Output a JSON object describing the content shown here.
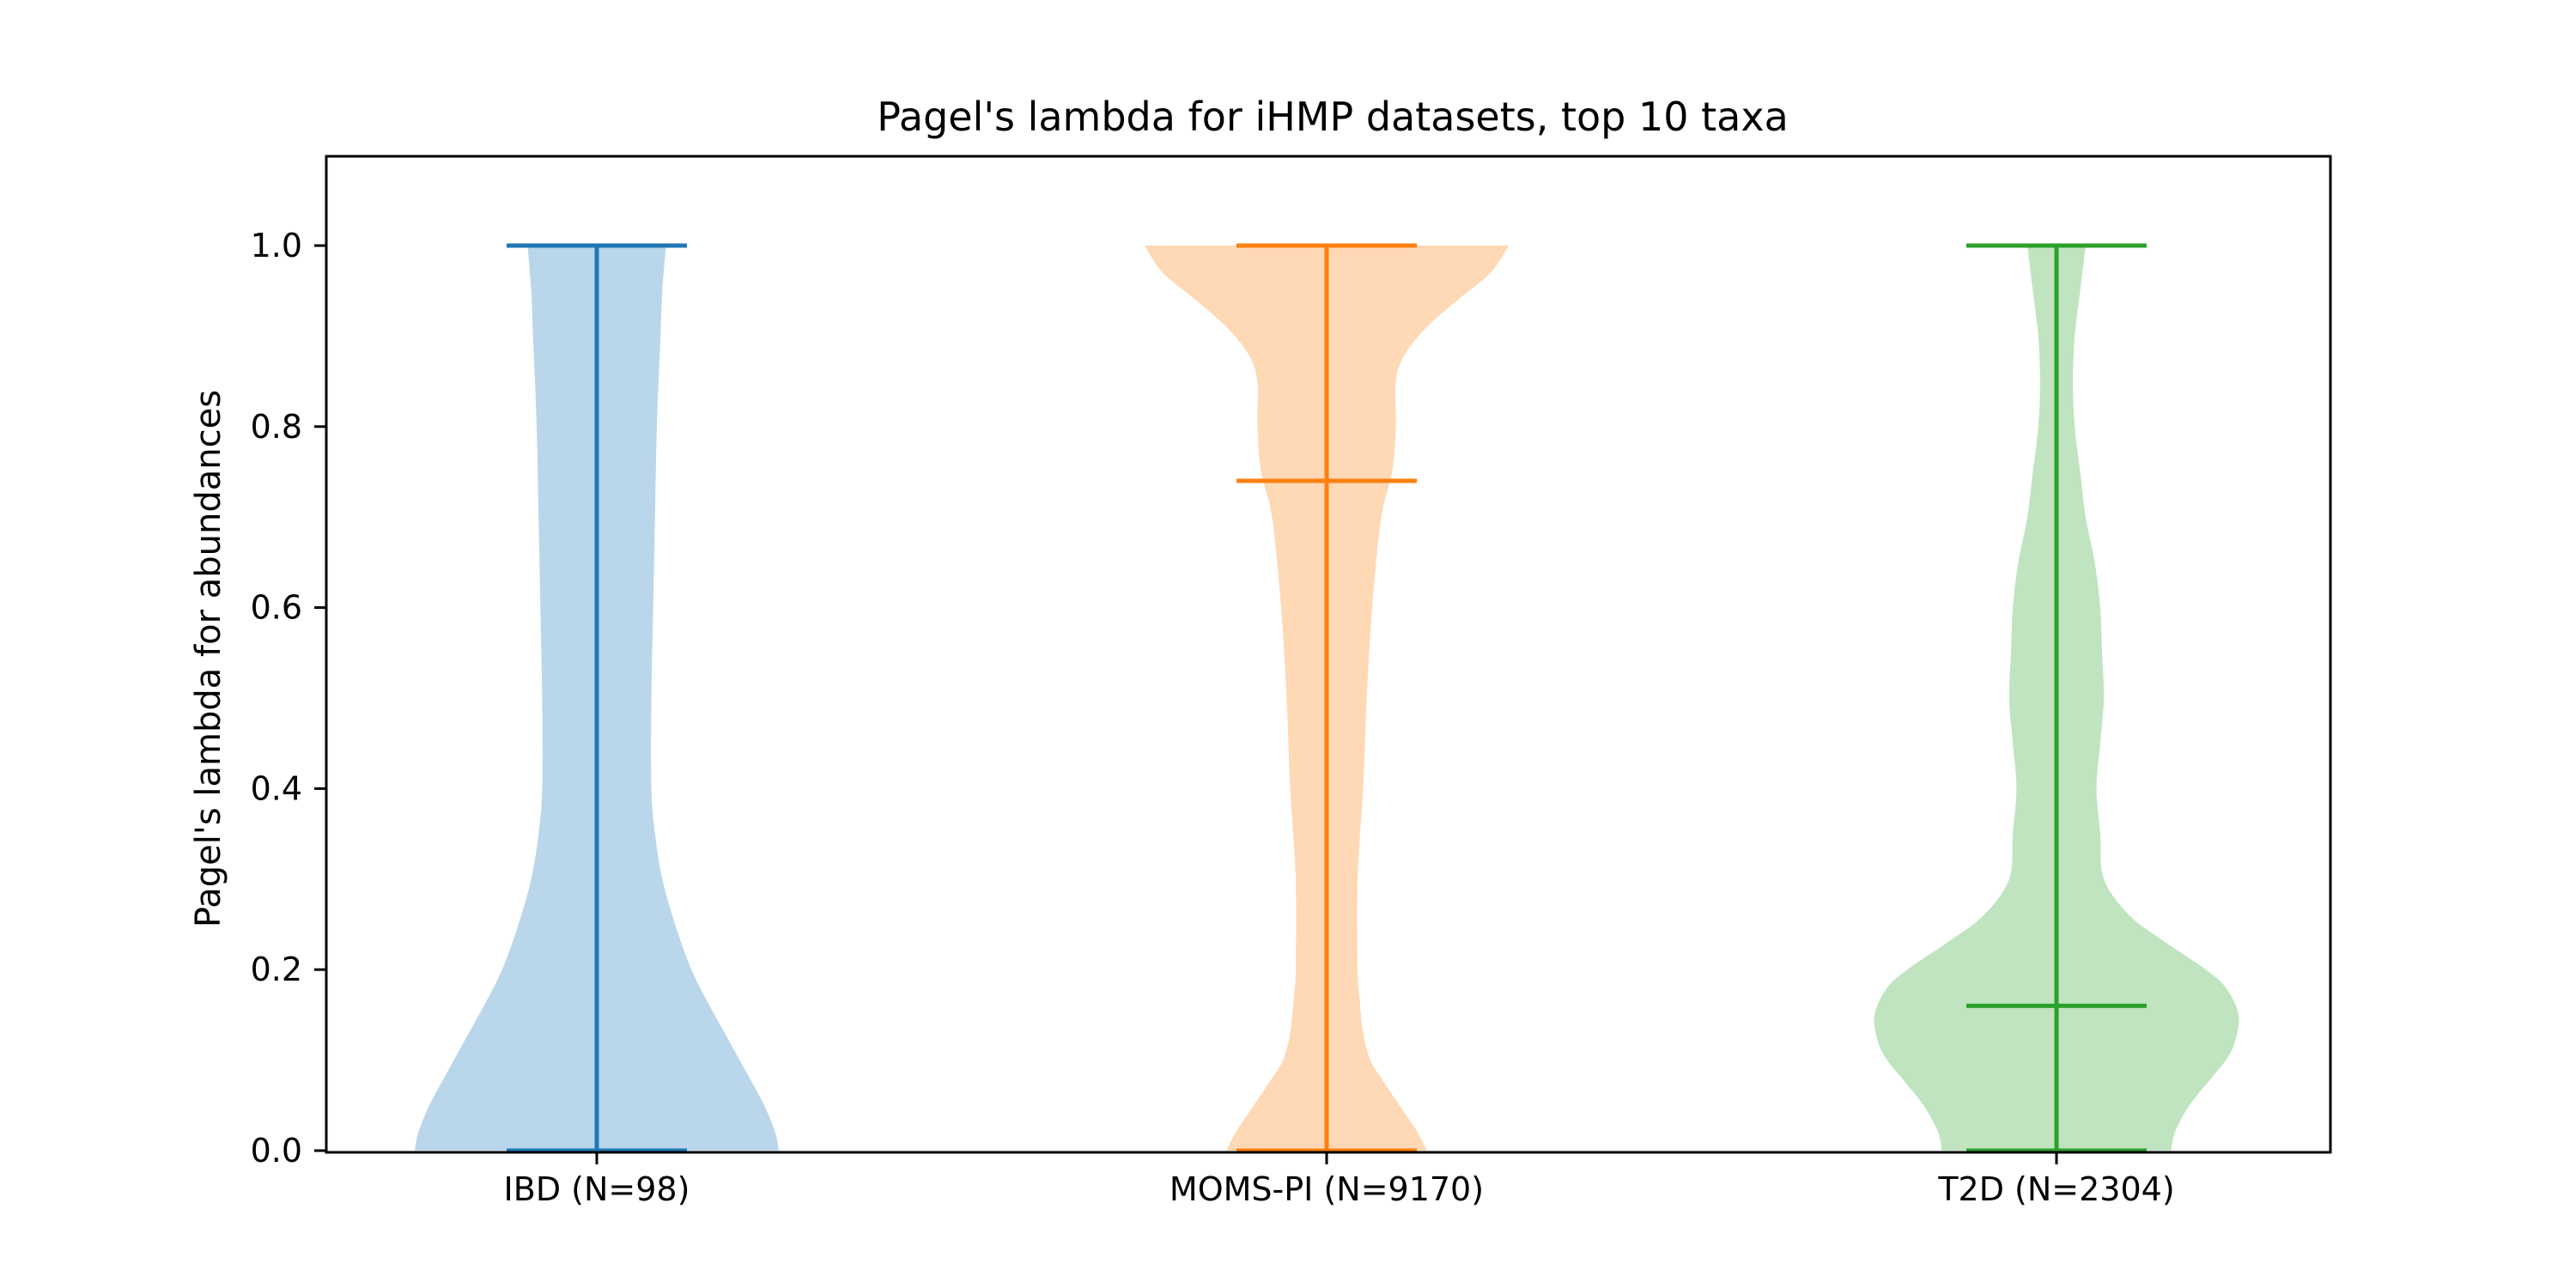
{
  "chart_data": {
    "type": "violin",
    "title": "Pagel's lambda for iHMP datasets, top 10 taxa",
    "xlabel": "",
    "ylabel": "Pagel's lambda for abundances",
    "ylim": [
      0,
      1.1
    ],
    "yticks": [
      0.0,
      0.2,
      0.4,
      0.6,
      0.8,
      1.0
    ],
    "ytick_labels": [
      "0.0",
      "0.2",
      "0.4",
      "0.6",
      "0.8",
      "1.0"
    ],
    "grid": false,
    "legend": "none",
    "categories": [
      "IBD (N=98)",
      "MOMS-PI (N=9170)",
      "T2D (N=2304)"
    ],
    "series": [
      {
        "category": "IBD (N=98)",
        "color": "#1f77b4",
        "fill": "#bad6ea",
        "min": 0.0,
        "max": 1.0,
        "median": 0.0,
        "density_profile": [
          [
            0.0,
            1.0
          ],
          [
            0.02,
            0.98
          ],
          [
            0.05,
            0.92
          ],
          [
            0.08,
            0.84
          ],
          [
            0.12,
            0.73
          ],
          [
            0.16,
            0.62
          ],
          [
            0.2,
            0.52
          ],
          [
            0.25,
            0.43
          ],
          [
            0.3,
            0.36
          ],
          [
            0.35,
            0.32
          ],
          [
            0.4,
            0.3
          ],
          [
            0.5,
            0.3
          ],
          [
            0.6,
            0.31
          ],
          [
            0.7,
            0.32
          ],
          [
            0.8,
            0.33
          ],
          [
            0.9,
            0.35
          ],
          [
            0.95,
            0.36
          ],
          [
            1.0,
            0.38
          ]
        ]
      },
      {
        "category": "MOMS-PI (N=9170)",
        "color": "#ff7f0e",
        "fill": "#ffd8b5",
        "min": 0.0,
        "max": 1.0,
        "median": 0.74,
        "density_profile": [
          [
            0.0,
            0.55
          ],
          [
            0.02,
            0.5
          ],
          [
            0.05,
            0.4
          ],
          [
            0.08,
            0.3
          ],
          [
            0.1,
            0.24
          ],
          [
            0.13,
            0.2
          ],
          [
            0.17,
            0.18
          ],
          [
            0.2,
            0.17
          ],
          [
            0.3,
            0.17
          ],
          [
            0.4,
            0.2
          ],
          [
            0.5,
            0.22
          ],
          [
            0.6,
            0.25
          ],
          [
            0.7,
            0.3
          ],
          [
            0.75,
            0.36
          ],
          [
            0.8,
            0.38
          ],
          [
            0.85,
            0.38
          ],
          [
            0.88,
            0.43
          ],
          [
            0.91,
            0.55
          ],
          [
            0.94,
            0.72
          ],
          [
            0.97,
            0.9
          ],
          [
            1.0,
            1.0
          ]
        ]
      },
      {
        "category": "T2D (N=2304)",
        "color": "#2ca02c",
        "fill": "#bfe4bf",
        "min": 0.0,
        "max": 1.0,
        "median": 0.16,
        "density_profile": [
          [
            0.0,
            0.63
          ],
          [
            0.02,
            0.65
          ],
          [
            0.05,
            0.73
          ],
          [
            0.08,
            0.85
          ],
          [
            0.1,
            0.93
          ],
          [
            0.12,
            0.98
          ],
          [
            0.15,
            1.0
          ],
          [
            0.18,
            0.93
          ],
          [
            0.2,
            0.82
          ],
          [
            0.23,
            0.6
          ],
          [
            0.26,
            0.4
          ],
          [
            0.3,
            0.26
          ],
          [
            0.35,
            0.24
          ],
          [
            0.4,
            0.22
          ],
          [
            0.45,
            0.24
          ],
          [
            0.5,
            0.26
          ],
          [
            0.55,
            0.25
          ],
          [
            0.6,
            0.24
          ],
          [
            0.65,
            0.21
          ],
          [
            0.7,
            0.16
          ],
          [
            0.75,
            0.13
          ],
          [
            0.8,
            0.1
          ],
          [
            0.85,
            0.09
          ],
          [
            0.9,
            0.1
          ],
          [
            0.95,
            0.13
          ],
          [
            1.0,
            0.16
          ]
        ]
      }
    ]
  }
}
